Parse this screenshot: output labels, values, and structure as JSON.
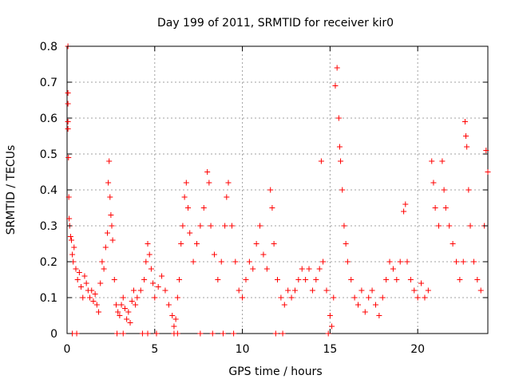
{
  "chart_data": {
    "type": "scatter",
    "title": "Day 199 of 2011, SRMTID for receiver kir0",
    "xlabel": "GPS time / hours",
    "ylabel": "SRMTID / TECUs",
    "xlim": [
      0,
      24
    ],
    "ylim": [
      0,
      0.8
    ],
    "xticks": [
      0,
      5,
      10,
      15,
      20
    ],
    "yticks": [
      0,
      0.1,
      0.2,
      0.3,
      0.4,
      0.5,
      0.6,
      0.7,
      0.8
    ],
    "xtick_labels": [
      "0",
      "5",
      "10",
      "15",
      "20"
    ],
    "ytick_labels": [
      "0",
      "0.1",
      "0.2",
      "0.3",
      "0.4",
      "0.5",
      "0.6",
      "0.7",
      "0.8"
    ],
    "grid": true,
    "marker": "+",
    "color": "#ff0000",
    "series": [
      {
        "name": "kir0",
        "points": [
          [
            0.05,
            0.8
          ],
          [
            0.05,
            0.67
          ],
          [
            0.05,
            0.64
          ],
          [
            0.05,
            0.59
          ],
          [
            0.05,
            0.57
          ],
          [
            0.08,
            0.49
          ],
          [
            0.1,
            0.38
          ],
          [
            0.12,
            0.32
          ],
          [
            0.15,
            0.3
          ],
          [
            0.2,
            0.27
          ],
          [
            0.25,
            0.26
          ],
          [
            0.3,
            0.22
          ],
          [
            0.35,
            0.2
          ],
          [
            0.4,
            0.24
          ],
          [
            0.5,
            0.18
          ],
          [
            0.6,
            0.15
          ],
          [
            0.7,
            0.17
          ],
          [
            0.8,
            0.13
          ],
          [
            0.9,
            0.1
          ],
          [
            1.0,
            0.16
          ],
          [
            1.1,
            0.14
          ],
          [
            1.2,
            0.12
          ],
          [
            1.3,
            0.1
          ],
          [
            1.4,
            0.12
          ],
          [
            1.5,
            0.09
          ],
          [
            1.6,
            0.11
          ],
          [
            1.7,
            0.08
          ],
          [
            1.8,
            0.06
          ],
          [
            1.9,
            0.14
          ],
          [
            2.0,
            0.2
          ],
          [
            2.1,
            0.18
          ],
          [
            2.2,
            0.24
          ],
          [
            2.3,
            0.28
          ],
          [
            2.35,
            0.42
          ],
          [
            2.4,
            0.48
          ],
          [
            2.45,
            0.38
          ],
          [
            2.5,
            0.33
          ],
          [
            2.55,
            0.3
          ],
          [
            2.6,
            0.26
          ],
          [
            2.7,
            0.15
          ],
          [
            2.8,
            0.08
          ],
          [
            2.9,
            0.06
          ],
          [
            3.0,
            0.05
          ],
          [
            3.1,
            0.08
          ],
          [
            3.2,
            0.1
          ],
          [
            3.3,
            0.07
          ],
          [
            3.4,
            0.04
          ],
          [
            3.5,
            0.06
          ],
          [
            3.6,
            0.03
          ],
          [
            3.7,
            0.09
          ],
          [
            3.8,
            0.12
          ],
          [
            3.9,
            0.08
          ],
          [
            4.0,
            0.1
          ],
          [
            4.2,
            0.12
          ],
          [
            4.4,
            0.15
          ],
          [
            4.5,
            0.2
          ],
          [
            4.6,
            0.25
          ],
          [
            4.7,
            0.22
          ],
          [
            4.8,
            0.18
          ],
          [
            4.9,
            0.14
          ],
          [
            5.0,
            0.1
          ],
          [
            5.2,
            0.13
          ],
          [
            5.4,
            0.16
          ],
          [
            5.6,
            0.12
          ],
          [
            5.8,
            0.08
          ],
          [
            6.0,
            0.05
          ],
          [
            6.1,
            0.02
          ],
          [
            6.2,
            0.04
          ],
          [
            6.3,
            0.1
          ],
          [
            6.4,
            0.15
          ],
          [
            6.5,
            0.25
          ],
          [
            6.6,
            0.3
          ],
          [
            6.7,
            0.38
          ],
          [
            6.8,
            0.42
          ],
          [
            6.9,
            0.35
          ],
          [
            7.0,
            0.28
          ],
          [
            7.2,
            0.2
          ],
          [
            7.4,
            0.25
          ],
          [
            7.6,
            0.3
          ],
          [
            7.8,
            0.35
          ],
          [
            8.0,
            0.45
          ],
          [
            8.1,
            0.42
          ],
          [
            8.2,
            0.3
          ],
          [
            8.4,
            0.22
          ],
          [
            8.6,
            0.15
          ],
          [
            8.8,
            0.2
          ],
          [
            9.0,
            0.3
          ],
          [
            9.1,
            0.38
          ],
          [
            9.2,
            0.42
          ],
          [
            9.4,
            0.3
          ],
          [
            9.6,
            0.2
          ],
          [
            9.8,
            0.12
          ],
          [
            10.0,
            0.1
          ],
          [
            10.2,
            0.15
          ],
          [
            10.4,
            0.2
          ],
          [
            10.6,
            0.18
          ],
          [
            10.8,
            0.25
          ],
          [
            11.0,
            0.3
          ],
          [
            11.2,
            0.22
          ],
          [
            11.4,
            0.18
          ],
          [
            11.6,
            0.4
          ],
          [
            11.7,
            0.35
          ],
          [
            11.8,
            0.25
          ],
          [
            12.0,
            0.15
          ],
          [
            12.2,
            0.1
          ],
          [
            12.4,
            0.08
          ],
          [
            12.6,
            0.12
          ],
          [
            12.8,
            0.1
          ],
          [
            13.0,
            0.12
          ],
          [
            13.2,
            0.15
          ],
          [
            13.4,
            0.18
          ],
          [
            13.6,
            0.15
          ],
          [
            13.8,
            0.18
          ],
          [
            14.0,
            0.12
          ],
          [
            14.2,
            0.15
          ],
          [
            14.4,
            0.18
          ],
          [
            14.5,
            0.48
          ],
          [
            14.6,
            0.2
          ],
          [
            14.8,
            0.12
          ],
          [
            15.0,
            0.05
          ],
          [
            15.1,
            0.02
          ],
          [
            15.2,
            0.1
          ],
          [
            15.3,
            0.69
          ],
          [
            15.4,
            0.74
          ],
          [
            15.5,
            0.6
          ],
          [
            15.55,
            0.52
          ],
          [
            15.6,
            0.48
          ],
          [
            15.7,
            0.4
          ],
          [
            15.8,
            0.3
          ],
          [
            15.9,
            0.25
          ],
          [
            16.0,
            0.2
          ],
          [
            16.2,
            0.15
          ],
          [
            16.4,
            0.1
          ],
          [
            16.6,
            0.08
          ],
          [
            16.8,
            0.12
          ],
          [
            17.0,
            0.06
          ],
          [
            17.2,
            0.1
          ],
          [
            17.4,
            0.12
          ],
          [
            17.6,
            0.08
          ],
          [
            17.8,
            0.05
          ],
          [
            18.0,
            0.1
          ],
          [
            18.2,
            0.15
          ],
          [
            18.4,
            0.2
          ],
          [
            18.6,
            0.18
          ],
          [
            18.8,
            0.15
          ],
          [
            19.0,
            0.2
          ],
          [
            19.2,
            0.34
          ],
          [
            19.3,
            0.36
          ],
          [
            19.4,
            0.2
          ],
          [
            19.6,
            0.15
          ],
          [
            19.8,
            0.12
          ],
          [
            20.0,
            0.1
          ],
          [
            20.2,
            0.14
          ],
          [
            20.4,
            0.1
          ],
          [
            20.6,
            0.12
          ],
          [
            20.8,
            0.48
          ],
          [
            20.9,
            0.42
          ],
          [
            21.0,
            0.35
          ],
          [
            21.2,
            0.3
          ],
          [
            21.4,
            0.48
          ],
          [
            21.5,
            0.4
          ],
          [
            21.6,
            0.35
          ],
          [
            21.8,
            0.3
          ],
          [
            22.0,
            0.25
          ],
          [
            22.2,
            0.2
          ],
          [
            22.4,
            0.15
          ],
          [
            22.6,
            0.2
          ],
          [
            22.7,
            0.59
          ],
          [
            22.75,
            0.55
          ],
          [
            22.8,
            0.52
          ],
          [
            22.9,
            0.4
          ],
          [
            23.0,
            0.3
          ],
          [
            23.2,
            0.2
          ],
          [
            23.4,
            0.15
          ],
          [
            23.6,
            0.12
          ],
          [
            23.8,
            0.3
          ],
          [
            23.9,
            0.51
          ],
          [
            24.0,
            0.45
          ],
          [
            0.3,
            0.0
          ],
          [
            0.55,
            0.0
          ],
          [
            2.85,
            0.0
          ],
          [
            3.2,
            0.0
          ],
          [
            4.3,
            0.0
          ],
          [
            4.6,
            0.0
          ],
          [
            5.1,
            0.0
          ],
          [
            6.1,
            0.0
          ],
          [
            6.3,
            0.0
          ],
          [
            7.6,
            0.0
          ],
          [
            8.3,
            0.0
          ],
          [
            8.9,
            0.0
          ],
          [
            9.5,
            0.0
          ],
          [
            11.9,
            0.0
          ],
          [
            12.3,
            0.0
          ],
          [
            14.9,
            0.0
          ]
        ]
      }
    ]
  }
}
